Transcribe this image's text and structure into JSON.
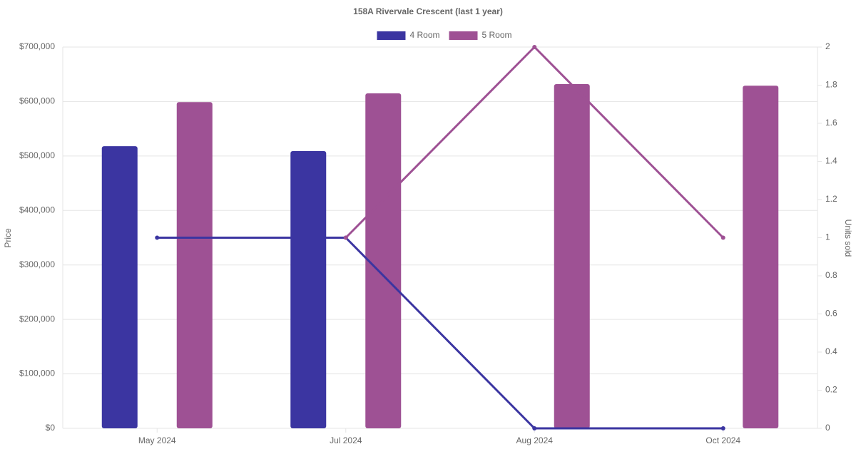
{
  "chart_data": {
    "type": "bar",
    "title": "158A Rivervale Crescent (last 1 year)",
    "y_label": "Price",
    "y2_label": "Units sold",
    "categories": [
      "May 2024",
      "Jul 2024",
      "Aug 2024",
      "Oct 2024"
    ],
    "series": [
      {
        "name": "4 Room",
        "color": "#3b35a1",
        "values": [
          518000,
          509000,
          null,
          null
        ],
        "units": [
          1,
          1,
          0,
          0
        ]
      },
      {
        "name": "5 Room",
        "color": "#9e5194",
        "values": [
          599000,
          615000,
          632000,
          629000
        ],
        "units": [
          null,
          1,
          2,
          1
        ]
      }
    ],
    "ylim": [
      0,
      700000
    ],
    "yticks": [
      {
        "value": 0,
        "label": "$0"
      },
      {
        "value": 100000,
        "label": "$100,000"
      },
      {
        "value": 200000,
        "label": "$200,000"
      },
      {
        "value": 300000,
        "label": "$300,000"
      },
      {
        "value": 400000,
        "label": "$400,000"
      },
      {
        "value": 500000,
        "label": "$500,000"
      },
      {
        "value": 600000,
        "label": "$600,000"
      },
      {
        "value": 700000,
        "label": "$700,000"
      }
    ],
    "y2lim": [
      0,
      2
    ],
    "y2ticks": [
      0,
      0.2,
      0.4,
      0.6,
      0.8,
      1,
      1.2,
      1.4,
      1.6,
      1.8,
      2
    ],
    "grid": true,
    "legend": "top"
  }
}
